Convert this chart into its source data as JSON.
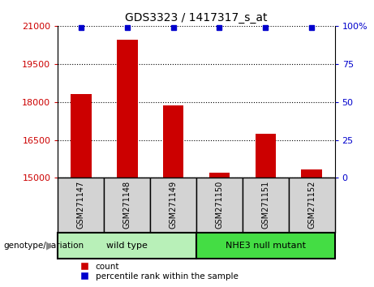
{
  "title": "GDS3323 / 1417317_s_at",
  "samples": [
    "GSM271147",
    "GSM271148",
    "GSM271149",
    "GSM271150",
    "GSM271151",
    "GSM271152"
  ],
  "counts": [
    18300,
    20450,
    17850,
    15200,
    16750,
    15330
  ],
  "percentile_ranks": [
    99,
    99,
    99,
    99,
    99,
    99
  ],
  "left_ylim": [
    15000,
    21000
  ],
  "left_yticks": [
    15000,
    16500,
    18000,
    19500,
    21000
  ],
  "right_ylim": [
    0,
    100
  ],
  "right_yticks": [
    0,
    25,
    50,
    75,
    100
  ],
  "right_yticklabels": [
    "0",
    "25",
    "50",
    "75",
    "100%"
  ],
  "bar_color": "#cc0000",
  "dot_color": "#0000cc",
  "bar_width": 0.45,
  "groups": [
    {
      "label": "wild type",
      "indices": [
        0,
        1,
        2
      ],
      "color": "#b8f0b8"
    },
    {
      "label": "NHE3 null mutant",
      "indices": [
        3,
        4,
        5
      ],
      "color": "#44dd44"
    }
  ],
  "group_label_prefix": "genotype/variation",
  "legend_count_label": "count",
  "legend_percentile_label": "percentile rank within the sample",
  "tick_label_color_left": "#cc0000",
  "tick_label_color_right": "#0000cc",
  "grid_color": "#000000",
  "background_color": "#ffffff",
  "sample_box_color": "#d3d3d3"
}
